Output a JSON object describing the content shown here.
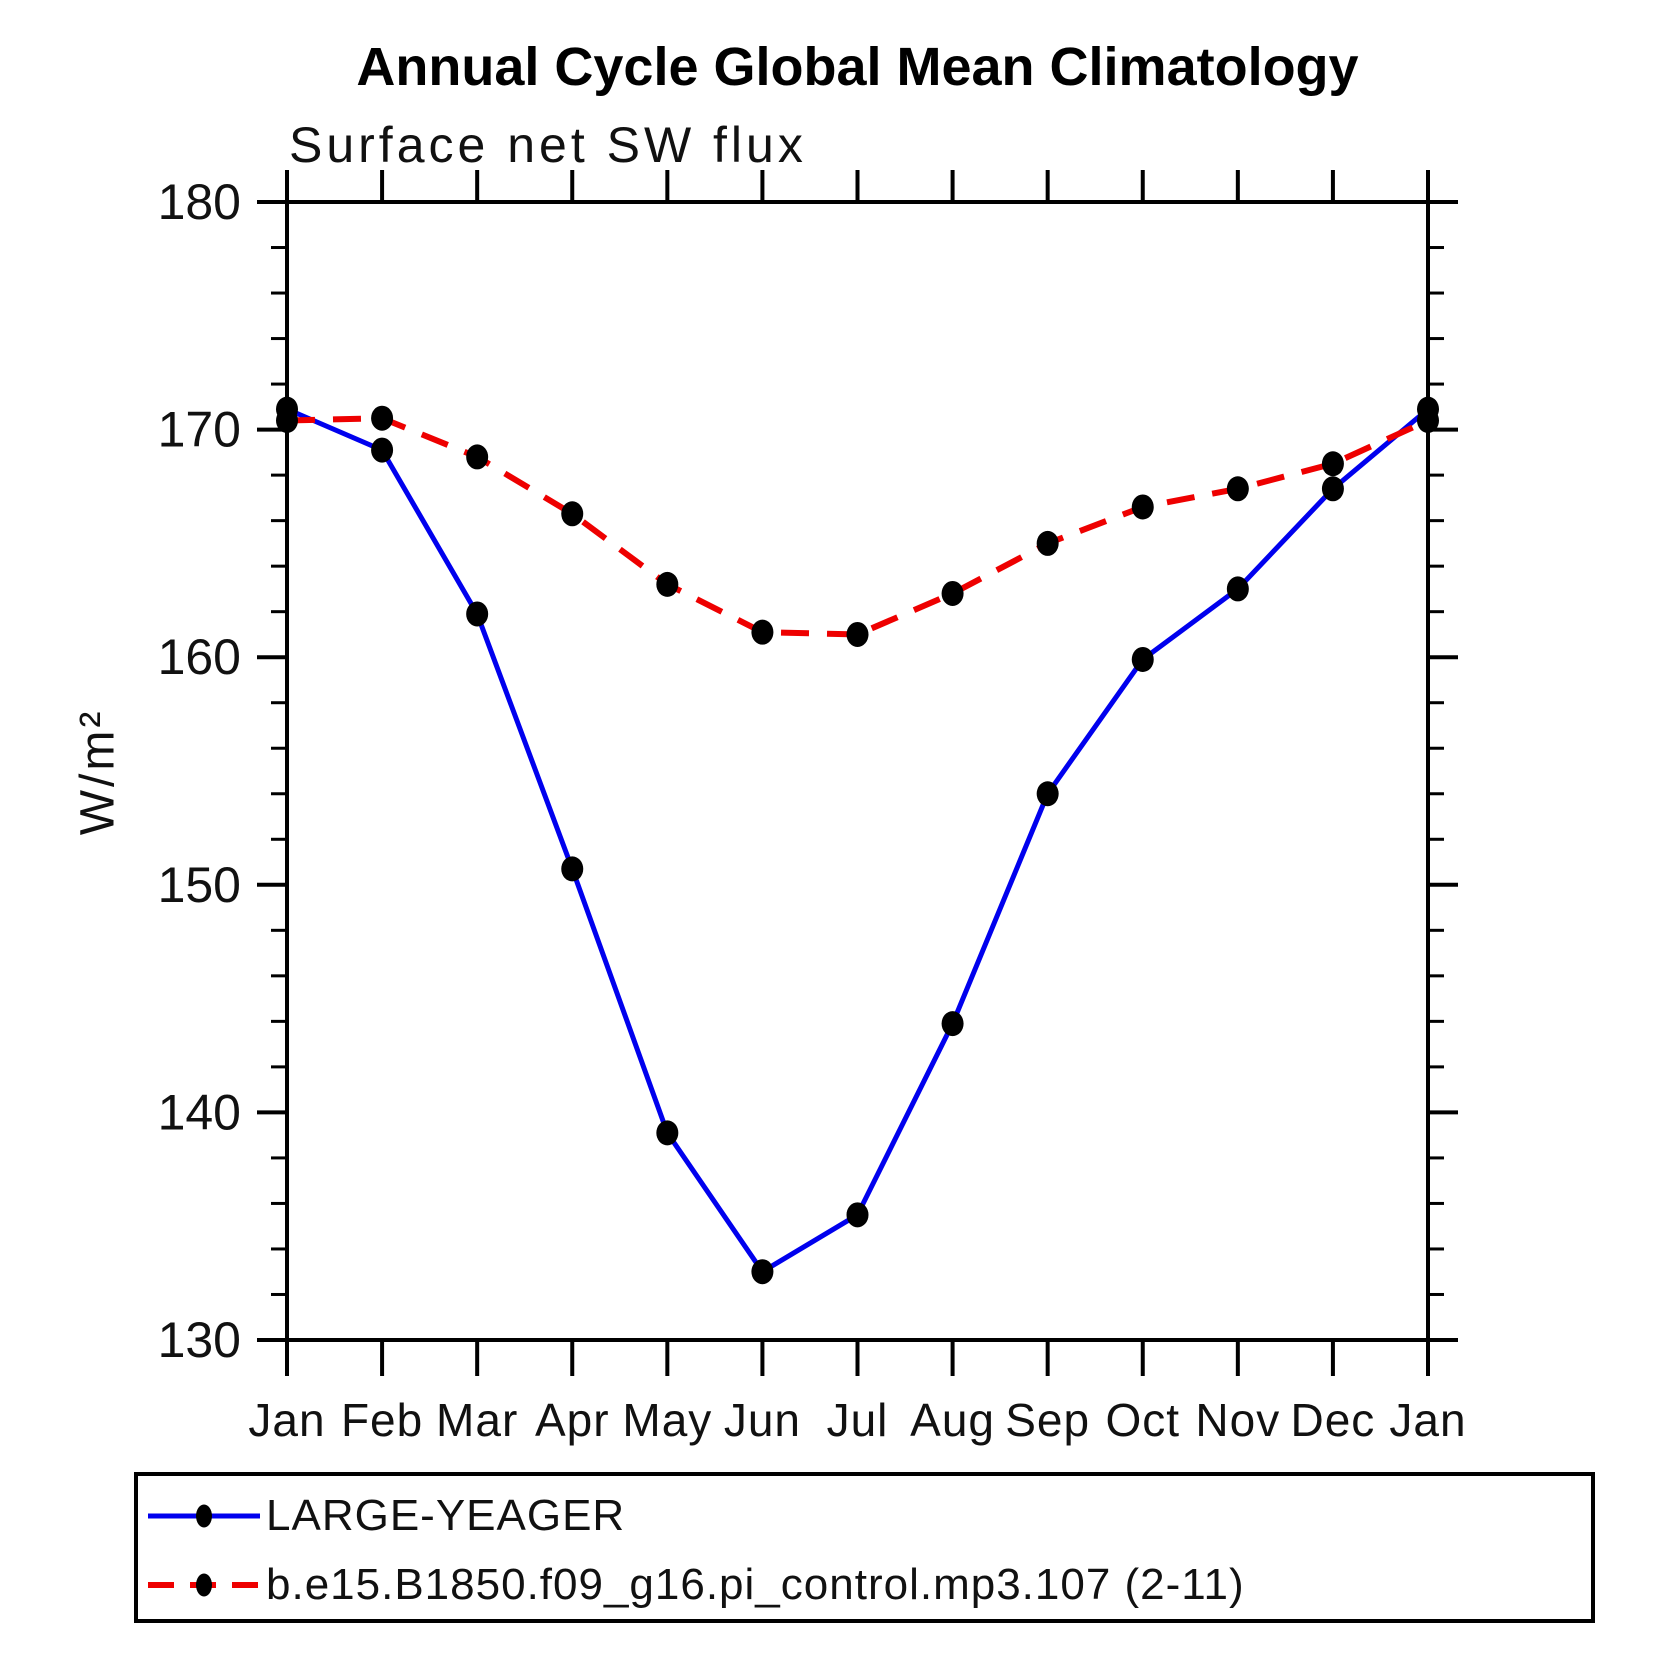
{
  "title": "Annual Cycle Global Mean Climatology",
  "subtitle": "Surface net SW flux",
  "y_axis_title": "W/m²",
  "colors": {
    "series1": "#0000ee",
    "series2": "#ee0000",
    "marker": "#000000",
    "axis": "#000000"
  },
  "chart_data": {
    "type": "line",
    "title": "Annual Cycle Global Mean Climatology",
    "subtitle": "Surface net SW flux",
    "xlabel": "",
    "ylabel": "W/m²",
    "categories": [
      "Jan",
      "Feb",
      "Mar",
      "Apr",
      "May",
      "Jun",
      "Jul",
      "Aug",
      "Sep",
      "Oct",
      "Nov",
      "Dec",
      "Jan"
    ],
    "ylim": [
      130,
      180
    ],
    "ytick_labels": [
      "130",
      "140",
      "150",
      "160",
      "170",
      "180"
    ],
    "ytick_major": [
      130,
      140,
      150,
      160,
      170,
      180
    ],
    "ytick_minor_step": 2,
    "grid": false,
    "legend_position": "bottom-box",
    "series": [
      {
        "name": "LARGE-YEAGER",
        "color": "#0000ee",
        "line_style": "solid",
        "marker": "filled-circle",
        "marker_color": "#000000",
        "values": [
          170.9,
          169.1,
          161.9,
          150.7,
          139.1,
          133.0,
          135.5,
          143.9,
          154.0,
          159.9,
          163.0,
          167.4,
          170.9
        ]
      },
      {
        "name": "b.e15.B1850.f09_g16.pi_control.mp3.107 (2-11)",
        "color": "#ee0000",
        "line_style": "dashed",
        "marker": "filled-circle",
        "marker_color": "#000000",
        "values": [
          170.4,
          170.5,
          168.8,
          166.3,
          163.2,
          161.1,
          161.0,
          162.8,
          165.0,
          166.6,
          167.4,
          168.5,
          170.4
        ]
      }
    ]
  }
}
